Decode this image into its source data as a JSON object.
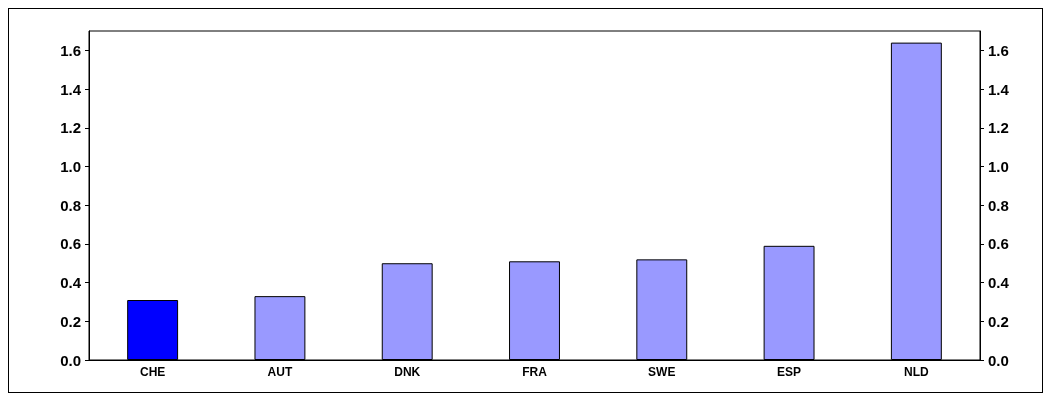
{
  "chart_data": {
    "type": "bar",
    "categories": [
      "CHE",
      "AUT",
      "DNK",
      "FRA",
      "SWE",
      "ESP",
      "NLD"
    ],
    "values": [
      0.31,
      0.33,
      0.5,
      0.51,
      0.52,
      0.59,
      1.64
    ],
    "colors": [
      "#0000ff",
      "#9999ff",
      "#9999ff",
      "#9999ff",
      "#9999ff",
      "#9999ff",
      "#9999ff"
    ],
    "ylim": [
      0,
      1.7
    ],
    "yticks": [
      {
        "value": 0,
        "label": "0.0"
      },
      {
        "value": 0.2,
        "label": "0.2"
      },
      {
        "value": 0.4,
        "label": "0.4"
      },
      {
        "value": 0.6,
        "label": "0.6"
      },
      {
        "value": 0.8,
        "label": "0.8"
      },
      {
        "value": 1,
        "label": "1.0"
      },
      {
        "value": 1.2,
        "label": "1.2"
      },
      {
        "value": 1.4,
        "label": "1.4"
      },
      {
        "value": 1.6,
        "label": "1.6"
      }
    ],
    "y2lim": [
      0,
      1.7
    ],
    "y2ticks": [
      {
        "value": 0,
        "label": "0.0"
      },
      {
        "value": 0.2,
        "label": "0.2"
      },
      {
        "value": 0.4,
        "label": "0.4"
      },
      {
        "value": 0.6,
        "label": "0.6"
      },
      {
        "value": 0.8,
        "label": "0.8"
      },
      {
        "value": 1,
        "label": "1.0"
      },
      {
        "value": 1.2,
        "label": "1.2"
      },
      {
        "value": 1.4,
        "label": "1.4"
      },
      {
        "value": 1.6,
        "label": "1.6"
      }
    ],
    "grid": false
  }
}
